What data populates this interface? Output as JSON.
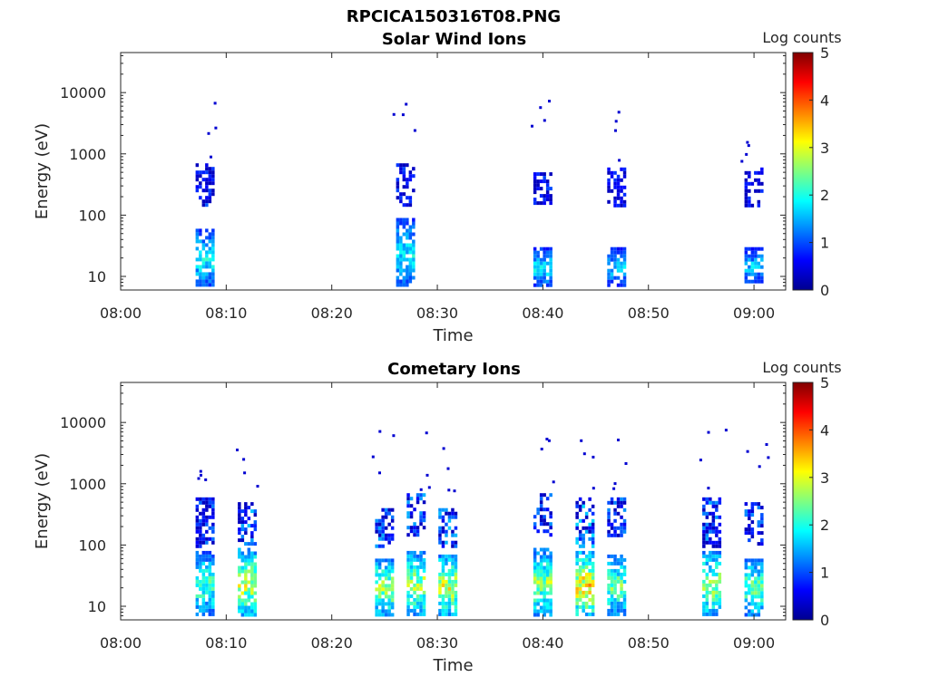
{
  "figure": {
    "title": "RPCICA150316T08.PNG"
  },
  "chart_data": [
    {
      "type": "heatmap",
      "title": "Solar Wind Ions",
      "xlabel": "Time",
      "ylabel": "Energy (eV)",
      "x_ticks": [
        "08:00",
        "08:10",
        "08:20",
        "08:30",
        "08:40",
        "08:50",
        "09:00"
      ],
      "x_range": [
        "08:00",
        "09:03"
      ],
      "y_scale": "log",
      "y_ticks": [
        "10",
        "100",
        "1000",
        "10000"
      ],
      "y_range": [
        6,
        45000
      ],
      "colorbar": {
        "label": "Log counts",
        "ticks": [
          "0",
          "1",
          "2",
          "3",
          "4",
          "5"
        ],
        "range": [
          0,
          5
        ],
        "colormap": "jet"
      },
      "bursts": [
        {
          "time": "08:08",
          "low_energy_eV": [
            7,
            60
          ],
          "mid_energy_eV": [
            150,
            700
          ],
          "peak_log_counts": 2.4
        },
        {
          "time": "08:27",
          "low_energy_eV": [
            7,
            90
          ],
          "mid_energy_eV": [
            150,
            700
          ],
          "peak_log_counts": 2.3
        },
        {
          "time": "08:40",
          "low_energy_eV": [
            7,
            30
          ],
          "mid_energy_eV": [
            150,
            500
          ],
          "peak_log_counts": 2.2
        },
        {
          "time": "08:47",
          "low_energy_eV": [
            7,
            30
          ],
          "mid_energy_eV": [
            150,
            600
          ],
          "peak_log_counts": 2.0
        },
        {
          "time": "09:00",
          "low_energy_eV": [
            8,
            30
          ],
          "mid_energy_eV": [
            150,
            600
          ],
          "peak_log_counts": 2.0
        }
      ]
    },
    {
      "type": "heatmap",
      "title": "Cometary Ions",
      "xlabel": "Time",
      "ylabel": "Energy (eV)",
      "x_ticks": [
        "08:00",
        "08:10",
        "08:20",
        "08:30",
        "08:40",
        "08:50",
        "09:00"
      ],
      "x_range": [
        "08:00",
        "09:03"
      ],
      "y_scale": "log",
      "y_ticks": [
        "10",
        "100",
        "1000",
        "10000"
      ],
      "y_range": [
        6,
        45000
      ],
      "colorbar": {
        "label": "Log counts",
        "ticks": [
          "0",
          "1",
          "2",
          "3",
          "4",
          "5"
        ],
        "range": [
          0,
          5
        ],
        "colormap": "jet"
      },
      "bursts": [
        {
          "time": "08:08",
          "low_energy_eV": [
            7,
            80
          ],
          "mid_energy_eV": [
            100,
            600
          ],
          "peak_log_counts": 2.8
        },
        {
          "time": "08:12",
          "low_energy_eV": [
            7,
            90
          ],
          "mid_energy_eV": [
            100,
            500
          ],
          "peak_log_counts": 3.6
        },
        {
          "time": "08:25",
          "low_energy_eV": [
            7,
            60
          ],
          "mid_energy_eV": [
            100,
            400
          ],
          "peak_log_counts": 3.3
        },
        {
          "time": "08:28",
          "low_energy_eV": [
            7,
            80
          ],
          "mid_energy_eV": [
            150,
            700
          ],
          "peak_log_counts": 3.4
        },
        {
          "time": "08:31",
          "low_energy_eV": [
            7,
            70
          ],
          "mid_energy_eV": [
            100,
            400
          ],
          "peak_log_counts": 3.6
        },
        {
          "time": "08:40",
          "low_energy_eV": [
            7,
            90
          ],
          "mid_energy_eV": [
            150,
            700
          ],
          "peak_log_counts": 3.2
        },
        {
          "time": "08:44",
          "low_energy_eV": [
            7,
            80
          ],
          "mid_energy_eV": [
            100,
            600
          ],
          "peak_log_counts": 4.0
        },
        {
          "time": "08:47",
          "low_energy_eV": [
            7,
            70
          ],
          "mid_energy_eV": [
            150,
            600
          ],
          "peak_log_counts": 3.0
        },
        {
          "time": "08:56",
          "low_energy_eV": [
            7,
            80
          ],
          "mid_energy_eV": [
            100,
            600
          ],
          "peak_log_counts": 3.3
        },
        {
          "time": "09:00",
          "low_energy_eV": [
            7,
            60
          ],
          "mid_energy_eV": [
            100,
            500
          ],
          "peak_log_counts": 3.0
        }
      ]
    }
  ]
}
